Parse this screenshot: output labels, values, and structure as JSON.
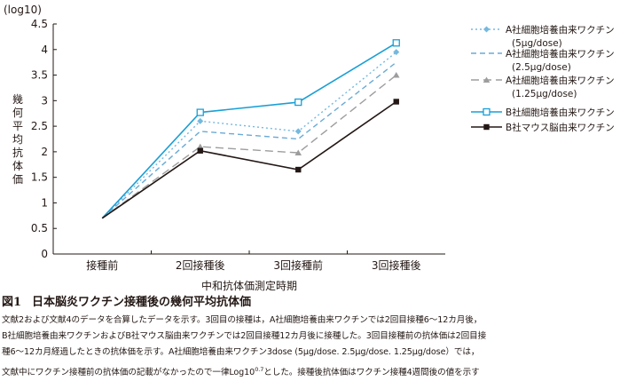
{
  "chart_data": {
    "type": "line",
    "unit_label": "(log10)",
    "ylabel": "幾何平均抗体価",
    "xlabel": "中和抗体価測定時期",
    "categories": [
      "接種前",
      "2回接種後",
      "3回接種前",
      "3回接種後"
    ],
    "ylim": [
      0,
      4.5
    ],
    "yticks": [
      "0",
      "0.5",
      "1",
      "1.5",
      "2",
      "2.5",
      "3",
      "3.5",
      "4",
      "4.5"
    ],
    "grid": false,
    "legend_position": "right",
    "series": [
      {
        "name_lines": [
          "A社細胞培養由来ワクチン",
          "(5μg/dose)"
        ],
        "values": [
          0.7,
          2.6,
          2.4,
          3.95
        ],
        "color": "#74b9df",
        "dash": "2,3",
        "marker": "diamond"
      },
      {
        "name_lines": [
          "A社細胞培養由来ワクチン",
          "(2.5μg/dose)"
        ],
        "values": [
          0.7,
          2.4,
          2.25,
          3.75
        ],
        "color": "#6aaad6",
        "dash": "6,4",
        "marker": "none"
      },
      {
        "name_lines": [
          "A社細胞培養由来ワクチン",
          "(1.25μg/dose)"
        ],
        "values": [
          0.7,
          2.1,
          1.98,
          3.5
        ],
        "color": "#9d9d9d",
        "dash": "9,5",
        "marker": "triangle"
      },
      {
        "name_lines": [
          "B社細胞培養由来ワクチン"
        ],
        "values": [
          0.7,
          2.77,
          2.97,
          4.13
        ],
        "color": "#1a9fd6",
        "dash": "",
        "marker": "square-open"
      },
      {
        "name_lines": [
          "B社マウス脳由来ワクチン"
        ],
        "values": [
          0.7,
          2.02,
          1.65,
          2.98
        ],
        "color": "#231815",
        "dash": "",
        "marker": "square-filled"
      }
    ]
  },
  "caption": {
    "fig_number": "図1",
    "title": "日本脳炎ワクチン接種後の幾何平均抗体価",
    "lines": [
      "文献2および文献4のデータを合算したデータを示す。3回目の接種は，A社細胞培養由来ワクチンでは2回目接種6～12カ月後，",
      "B社細胞培養由来ワクチンおよびB社マウス脳由来ワクチンでは2回目接種12カ月後に接種した。3回目接種前の抗体価は2回目接",
      "種6～12カ月経過したときの抗体価を示す。A社細胞培養由来ワクチン3dose (5μg/dose. 2.5μg/dose. 1.25μg/dose）では，"
    ],
    "last_line_before": "文献中にワクチン接種前の抗体価の記載がなかったので一律Log10",
    "last_line_sup": "0.7",
    "last_line_after": "とした。接種後抗体価はワクチン接種4週間後の値を示す"
  }
}
